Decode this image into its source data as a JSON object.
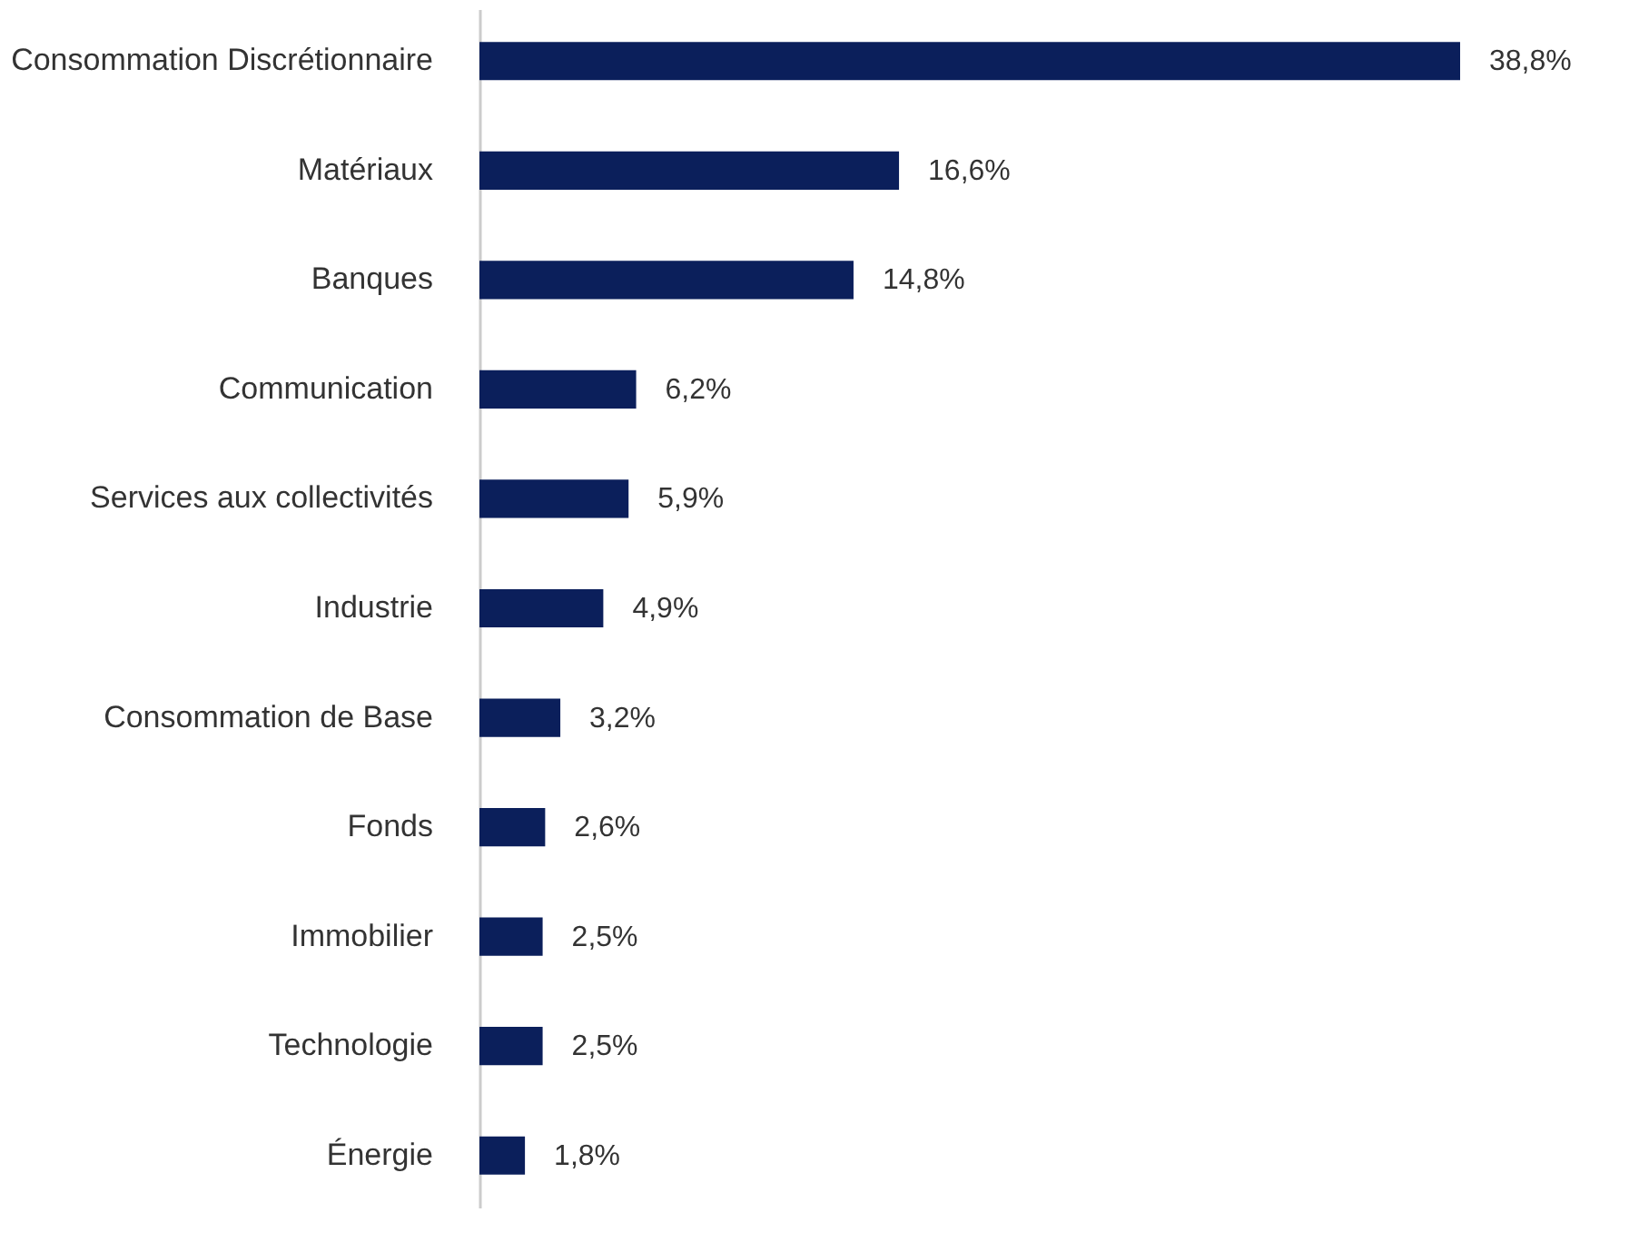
{
  "chart_data": {
    "type": "bar",
    "orientation": "horizontal",
    "color": "#0b1f5b",
    "categories": [
      "Consommation Discrétionnaire",
      "Matériaux",
      "Banques",
      "Communication",
      "Services aux collectivités",
      "Industrie",
      "Consommation de Base",
      "Fonds",
      "Immobilier",
      "Technologie",
      "Énergie"
    ],
    "values": [
      38.8,
      16.6,
      14.8,
      6.2,
      5.9,
      4.9,
      3.2,
      2.6,
      2.5,
      2.5,
      1.8
    ],
    "value_labels": [
      "38,8%",
      "16,6%",
      "14,8%",
      "6,2%",
      "5,9%",
      "4,9%",
      "3,2%",
      "2,6%",
      "2,5%",
      "2,5%",
      "1,8%"
    ]
  }
}
